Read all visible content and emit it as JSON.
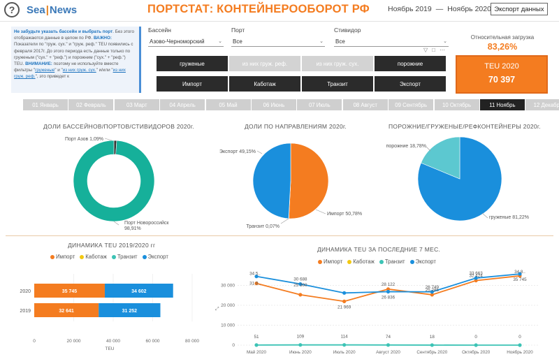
{
  "header": {
    "help_glyph": "?",
    "logo_part1": "Sea",
    "logo_sep": "|",
    "logo_part2": "News",
    "title": "ПОРТСТАТ: КОНТЕЙНЕРООБОРОТ РФ",
    "period_from": "Ноябрь 2019",
    "period_dash": "—",
    "period_to": "Ноябрь 2020",
    "export_label": "Экспорт данных"
  },
  "info": {
    "line1_blue": "Не забудьте указать бассейн и выбрать порт",
    "line1_rest": ". Без этого отображаются данные в целом по РФ.",
    "warn1": "ВАЖНО:",
    "text2": " Показатели по \"груж. сух.\" и \"груж. реф.\" TEU появились с февраля 2017г. До этого периода есть данные только по груженым (\"сух.\" + \"реф.\") и порожним (\"сух.\" + \"реф.\") TEU. ",
    "warn2": "ВНИМАНИЕ:",
    "text3": " поэтому не используйте вместе фильтры \"",
    "link1": "груженые",
    "text4": "\" и \"",
    "link2": "из них груж. сух.",
    "text5": "\" и/или \"",
    "link3": "из них груж. реф.",
    "text6": "\", это приведет к"
  },
  "filters": {
    "basin_label": "Бассейн",
    "basin_value": "Азово-Черноморский",
    "port_label": "Порт",
    "port_value": "Все",
    "stevedore_label": "Стивидор",
    "stevedore_value": "Все"
  },
  "cargo_buttons": [
    {
      "label": "груженые",
      "active": true
    },
    {
      "label": "из них груж. реф.",
      "active": false
    },
    {
      "label": "из них груж. сух.",
      "active": false
    },
    {
      "label": "порожние",
      "active": true
    }
  ],
  "direction_buttons": [
    {
      "label": "Импорт",
      "active": true
    },
    {
      "label": "Каботаж",
      "active": true
    },
    {
      "label": "Транзит",
      "active": true
    },
    {
      "label": "Экспорт",
      "active": true
    }
  ],
  "kpi": {
    "rel_label": "Относительная загрузка",
    "rel_value": "83,26%",
    "teu_label": "TEU 2020",
    "teu_value": "70 397"
  },
  "months": [
    "01 Январь",
    "02 Февраль",
    "03 Март",
    "04 Апрель",
    "05 Май",
    "06 Июнь",
    "07 Июль",
    "08 Август",
    "09 Сентябрь",
    "10 Октябрь",
    "11 Ноябрь",
    "12 Декабрь"
  ],
  "active_month": "11 Ноябрь",
  "sections": {
    "donut_title": "ДОЛИ БАССЕЙНОВ/ПОРТОВ/СТИВИДОРОВ 2020г.",
    "pie_dir_title": "ДОЛИ ПО НАПРАВЛЕНИЯМ 2020г.",
    "pie_cargo_title": "ПОРОЖНИЕ/ГРУЖЕНЫЕ/РЕФКОНТЕЙНЕРЫ 2020г.",
    "bar_title": "ДИНАМИКА TEU 2019/2020 гг",
    "line_title": "ДИНАМИКА TEU ЗА ПОСЛЕДНИЕ 7 МЕС."
  },
  "legend": [
    {
      "name": "Импорт",
      "color": "#f47c20"
    },
    {
      "name": "Каботаж",
      "color": "#f2c811"
    },
    {
      "name": "Транзит",
      "color": "#3cc3b5"
    },
    {
      "name": "Экспорт",
      "color": "#1a8fdc"
    }
  ],
  "chart_data": [
    {
      "type": "pie",
      "title": "ДОЛИ БАССЕЙНОВ/ПОРТОВ/СТИВИДОРОВ 2020г.",
      "donut": true,
      "labels": [
        "Порт Новороссийск",
        "Порт Азов"
      ],
      "values": [
        98.91,
        1.09
      ],
      "display": [
        "Порт Новороссийск\n98,91%",
        "Порт Азов 1,09%"
      ],
      "colors": [
        "#16b09a",
        "#333333"
      ]
    },
    {
      "type": "pie",
      "title": "ДОЛИ ПО НАПРАВЛЕНИЯМ 2020г.",
      "labels": [
        "Импорт",
        "Экспорт",
        "Транзит"
      ],
      "values": [
        50.78,
        49.15,
        0.07
      ],
      "display": [
        "Импорт 50,78%",
        "Экспорт 49,15%",
        "Транзит 0,07%"
      ],
      "colors": [
        "#f47c20",
        "#1a8fdc",
        "#3cc3b5"
      ]
    },
    {
      "type": "pie",
      "title": "ПОРОЖНИЕ/ГРУЖЕНЫЕ/РЕФКОНТЕЙНЕРЫ 2020г.",
      "labels": [
        "груженые",
        "порожние"
      ],
      "values": [
        81.22,
        18.78
      ],
      "display": [
        "груженые 81,22%",
        "порожние 18,78%"
      ],
      "colors": [
        "#1a8fdc",
        "#5cc8d0"
      ]
    },
    {
      "type": "bar",
      "orientation": "horizontal",
      "stacked": true,
      "title": "ДИНАМИКА TEU 2019/2020 гг",
      "categories": [
        "2020",
        "2019"
      ],
      "series": [
        {
          "name": "Импорт",
          "values": [
            35745,
            32641
          ],
          "labels": [
            "35 745",
            "32 641"
          ],
          "color": "#f47c20"
        },
        {
          "name": "Экспорт",
          "values": [
            34602,
            31252
          ],
          "labels": [
            "34 602",
            "31 252"
          ],
          "color": "#1a8fdc"
        }
      ],
      "xlabel": "TEU",
      "xlim": [
        0,
        80000
      ],
      "xticks": [
        0,
        20000,
        40000,
        60000,
        80000
      ],
      "xtick_labels": [
        "0",
        "20 000",
        "40 000",
        "60 000",
        "80 000"
      ]
    },
    {
      "type": "line",
      "title": "ДИНАМИКА TEU ЗА ПОСЛЕДНИЕ 7 МЕС.",
      "categories": [
        "Май 2020",
        "Июнь 2020",
        "Июль 2020",
        "Август 2020",
        "Сентябрь 2020",
        "Октябрь 2020",
        "Ноябрь 2020"
      ],
      "series": [
        {
          "name": "Импорт",
          "values": [
            31000,
            25300,
            21969,
            28122,
            25285,
            32424,
            34800
          ],
          "labels": [
            "",
            "",
            "21 969",
            "28 122",
            "25 285",
            "32 424",
            ""
          ],
          "color": "#f47c20"
        },
        {
          "name": "Экспорт",
          "values": [
            34500,
            30688,
            26200,
            26836,
            26749,
            33663,
            35745
          ],
          "labels": [
            "",
            "30 688",
            "",
            "26 836",
            "26 749",
            "33 663",
            "35 745"
          ],
          "color": "#1a8fdc"
        },
        {
          "name": "Транзит",
          "values": [
            51,
            109,
            114,
            74,
            18,
            0,
            0
          ],
          "labels": [
            "51",
            "109",
            "114",
            "74",
            "18",
            "0",
            "0"
          ],
          "color": "#3cc3b5"
        }
      ],
      "extra_labels": {
        "may_import": "31 0..",
        "may_export": "34 5..",
        "jun_import": "25 300",
        "nov_import": "34 8.."
      },
      "ylim": [
        0,
        40000
      ],
      "yticks": [
        0,
        10000,
        20000,
        30000
      ],
      "ytick_labels": [
        "0",
        "10 000",
        "20 000",
        "30 000"
      ],
      "grid": true
    }
  ]
}
